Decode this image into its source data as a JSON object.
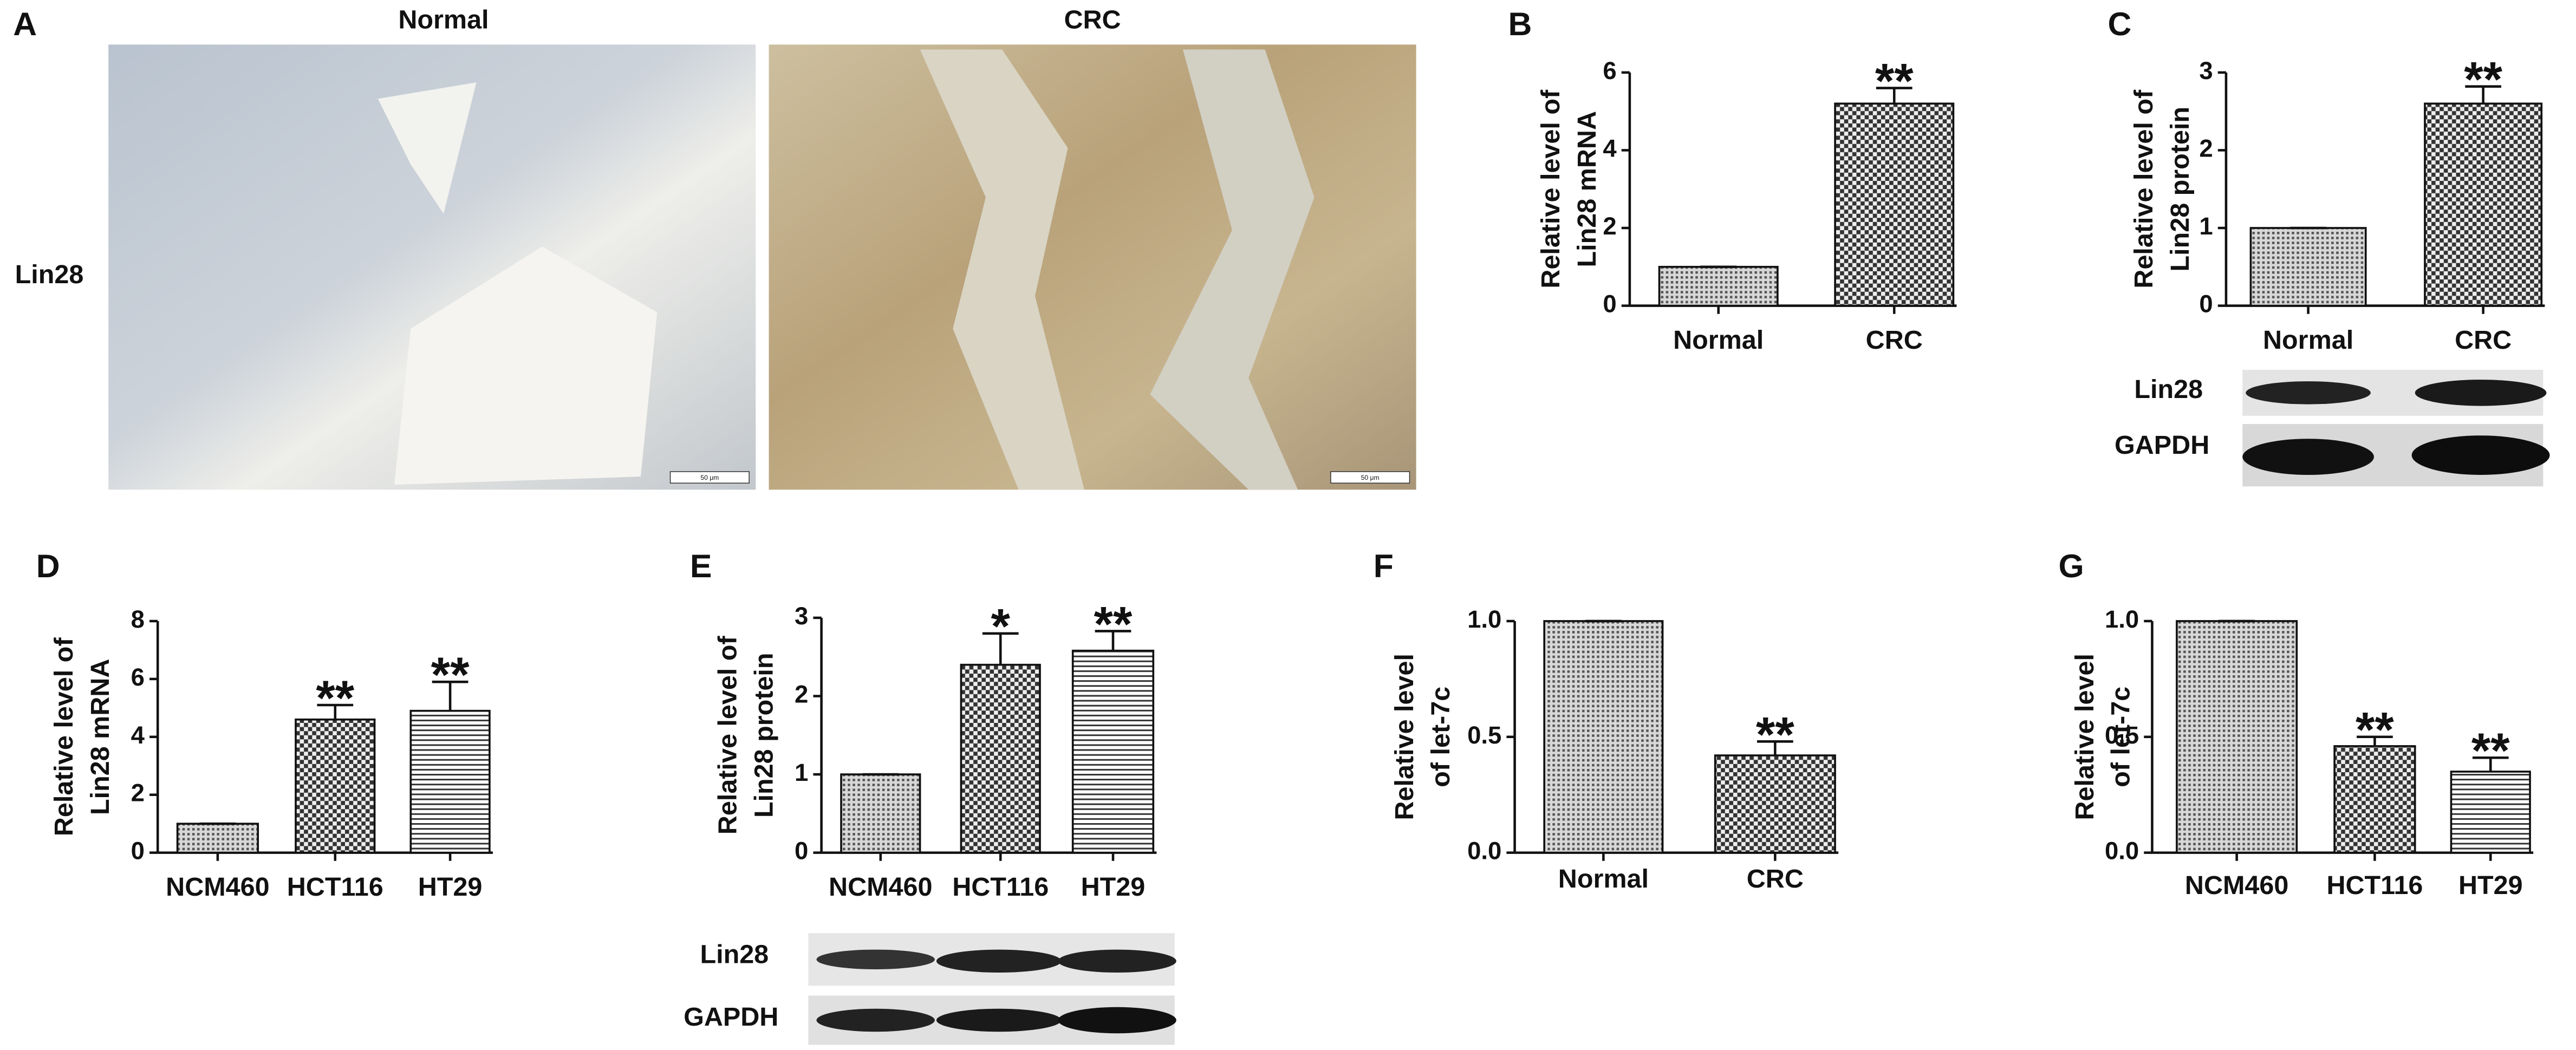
{
  "panel_labels": [
    "A",
    "B",
    "C",
    "D",
    "E",
    "F",
    "G"
  ],
  "panel_a": {
    "row_label": "Lin28",
    "columns": [
      "Normal",
      "CRC"
    ],
    "scale_bars": [
      "50 μm",
      "50 μm"
    ]
  },
  "blots": [
    {
      "rows": [
        "Lin28",
        "GAPDH"
      ]
    },
    {
      "rows": [
        "Lin28",
        "GAPDH"
      ]
    }
  ],
  "chart_data": [
    {
      "type": "bar",
      "ylabel": [
        "Relative level of",
        "Lin28 mRNA"
      ],
      "categories": [
        "Normal",
        "CRC"
      ],
      "values": [
        1,
        5.2
      ],
      "errors": [
        0,
        0.4
      ],
      "significance": [
        null,
        "**"
      ],
      "ylim": [
        0,
        6
      ],
      "yticks": [
        0,
        2,
        4,
        6
      ]
    },
    {
      "type": "bar",
      "ylabel": [
        "Relative level of",
        "Lin28 protein"
      ],
      "categories": [
        "Normal",
        "CRC"
      ],
      "values": [
        1,
        2.6
      ],
      "errors": [
        0,
        0.22
      ],
      "significance": [
        null,
        "**"
      ],
      "ylim": [
        0,
        3
      ],
      "yticks": [
        0,
        1,
        2,
        3
      ]
    },
    {
      "type": "bar",
      "ylabel": [
        "Relative level of",
        "Lin28 mRNA"
      ],
      "categories": [
        "NCM460",
        "HCT116",
        "HT29"
      ],
      "values": [
        1,
        4.6,
        4.9
      ],
      "errors": [
        0,
        0.5,
        1.0
      ],
      "significance": [
        null,
        "**",
        "**"
      ],
      "ylim": [
        0,
        8
      ],
      "yticks": [
        0,
        2,
        4,
        6,
        8
      ]
    },
    {
      "type": "bar",
      "ylabel": [
        "Relative level of",
        "Lin28 protein"
      ],
      "categories": [
        "NCM460",
        "HCT116",
        "HT29"
      ],
      "values": [
        1,
        2.4,
        2.58
      ],
      "errors": [
        0,
        0.4,
        0.25
      ],
      "significance": [
        null,
        "*",
        "**"
      ],
      "ylim": [
        0,
        3
      ],
      "yticks": [
        0,
        1,
        2,
        3
      ]
    },
    {
      "type": "bar",
      "ylabel": [
        "Relative level",
        "of let-7c"
      ],
      "categories": [
        "Normal",
        "CRC"
      ],
      "values": [
        1.0,
        0.42
      ],
      "errors": [
        0,
        0.06
      ],
      "significance": [
        null,
        "**"
      ],
      "ylim": [
        0,
        1.0
      ],
      "yticks": [
        {
          "value": 0,
          "label": "0.0"
        },
        {
          "value": 0.5,
          "label": "0.5"
        },
        {
          "value": 1.0,
          "label": "1.0"
        }
      ]
    },
    {
      "type": "bar",
      "ylabel": [
        "Relative level",
        "of let-7c"
      ],
      "categories": [
        "NCM460",
        "HCT116",
        "HT29"
      ],
      "values": [
        1.0,
        0.46,
        0.35
      ],
      "errors": [
        0,
        0.04,
        0.06
      ],
      "significance": [
        null,
        "**",
        "**"
      ],
      "ylim": [
        0,
        1.0
      ],
      "yticks": [
        {
          "value": 0,
          "label": "0.0"
        },
        {
          "value": 0.5,
          "label": "0.5"
        },
        {
          "value": 1.0,
          "label": "1.0"
        }
      ]
    }
  ]
}
